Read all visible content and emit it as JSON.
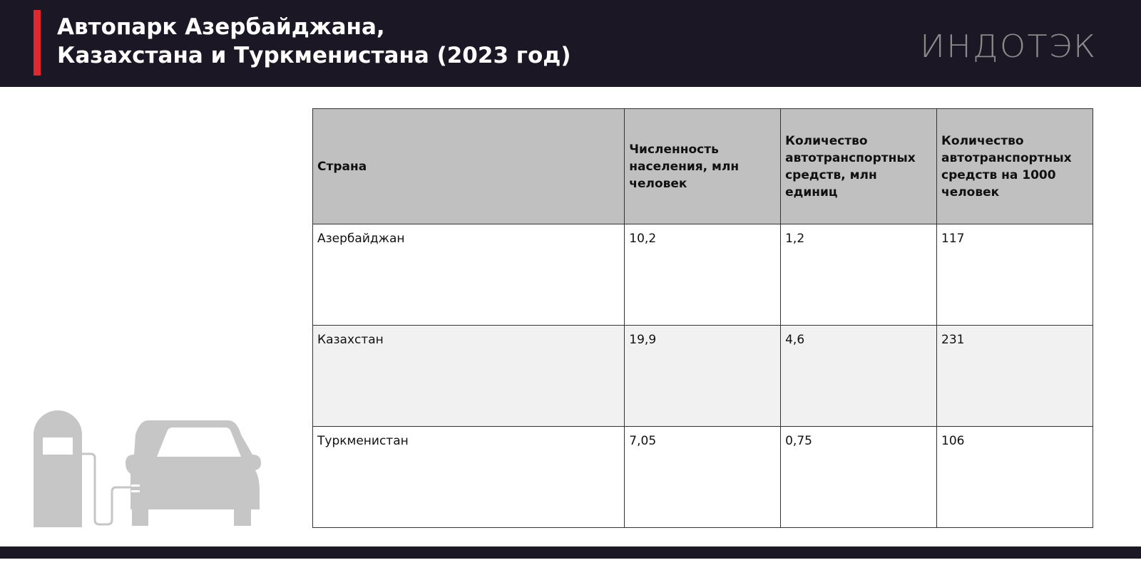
{
  "header": {
    "title_line1": "Автопарк Азербайджана,",
    "title_line2": "Казахстана и Туркменистана (2023 год)",
    "logo": "ИНДОТЭК"
  },
  "colors": {
    "header_bg": "#1c1724",
    "accent": "#e0282e",
    "table_header_bg": "#c0c0c0",
    "alt_row_bg": "#f1f1f1",
    "icon": "#c6c6c6"
  },
  "icon": "fuel-pump-car-icon",
  "table": {
    "headers": [
      "Страна",
      "Численность населения, млн человек",
      "Количество автотранспортных средств, млн единиц",
      "Количество автотранспортных средств на 1000 человек"
    ],
    "rows": [
      [
        "Азербайджан",
        "10,2",
        "1,2",
        "117"
      ],
      [
        "Казахстан",
        "19,9",
        "4,6",
        "231"
      ],
      [
        "Туркменистан",
        "7,05",
        "0,75",
        "106"
      ]
    ]
  }
}
